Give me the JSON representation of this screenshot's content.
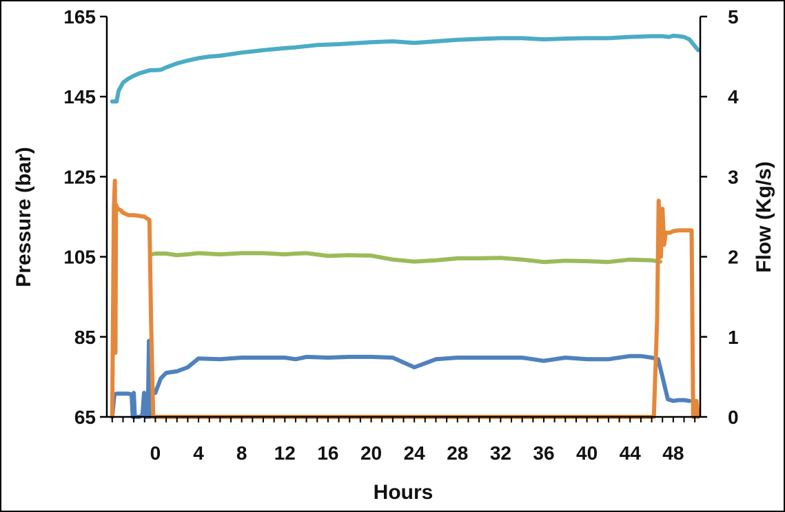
{
  "chart_data": {
    "type": "line",
    "title": "",
    "xlabel": "Hours",
    "ylabel": "Pressure (bar)",
    "y2label": "Flow (Kg/s)",
    "xlim": [
      -4.5,
      50.5
    ],
    "ylim": [
      65,
      165
    ],
    "y2lim": [
      0,
      5
    ],
    "x_ticks": [
      0,
      4,
      8,
      12,
      16,
      20,
      24,
      28,
      32,
      36,
      40,
      44,
      48
    ],
    "y_ticks": [
      65,
      85,
      105,
      125,
      145,
      165
    ],
    "y2_ticks": [
      0,
      1,
      2,
      3,
      4,
      5
    ],
    "grid": false,
    "legend": "none",
    "series": [
      {
        "color": "#4bacc6",
        "axis": "left",
        "x": [
          -4,
          -3.6,
          -3.4,
          -3,
          -2.5,
          -2,
          -1.5,
          -1,
          -0.5,
          0,
          0.5,
          1,
          2,
          3,
          4,
          5,
          6,
          8,
          10,
          12,
          13,
          15,
          17,
          20,
          22,
          24,
          26,
          28,
          30,
          32,
          34,
          36,
          38,
          40,
          42,
          44,
          46,
          47,
          47.6,
          48,
          48.5,
          49,
          49.5,
          50.3
        ],
        "y": [
          143.8,
          143.8,
          146.5,
          148.5,
          149.5,
          150.2,
          150.8,
          151.2,
          151.6,
          151.6,
          151.7,
          152.3,
          153.3,
          154,
          154.6,
          155,
          155.2,
          156,
          156.6,
          157.1,
          157.3,
          157.9,
          158.1,
          158.6,
          158.8,
          158.4,
          158.8,
          159.2,
          159.4,
          159.6,
          159.6,
          159.3,
          159.5,
          159.6,
          159.6,
          159.9,
          160.1,
          160.1,
          159.9,
          160.2,
          160.1,
          159.9,
          159.3,
          156.6
        ]
      },
      {
        "color": "#9bbb59",
        "axis": "left",
        "x": [
          -0.5,
          0,
          1,
          2,
          3,
          4,
          6,
          8,
          10,
          12,
          13,
          14,
          16,
          18,
          20,
          22,
          24,
          26,
          28,
          30,
          32,
          34,
          36,
          38,
          40,
          42,
          44,
          46,
          46.8
        ],
        "y": [
          105.5,
          105.8,
          105.8,
          105.4,
          105.6,
          105.9,
          105.6,
          105.9,
          105.9,
          105.6,
          105.8,
          105.9,
          105.2,
          105.4,
          105.3,
          104.3,
          103.8,
          104.1,
          104.6,
          104.6,
          104.7,
          104.3,
          103.7,
          104,
          103.9,
          103.7,
          104.3,
          104.1,
          103.8
        ]
      },
      {
        "color": "#4f81bd",
        "axis": "right",
        "x": [
          -4,
          -3.8,
          -3.6,
          -3.3,
          -3,
          -2.5,
          -2.2,
          -2.1,
          -2,
          -1.9,
          -1.5,
          -1.2,
          -1.05,
          -0.9,
          -0.7,
          -0.6,
          -0.5,
          -0.3,
          0,
          0.5,
          1,
          2,
          3,
          4,
          6,
          8,
          10,
          12,
          13,
          14,
          16,
          18,
          20,
          22,
          24,
          26,
          28,
          30,
          32,
          34,
          36,
          38,
          40,
          42,
          44,
          45,
          46,
          46.6,
          47,
          47.5,
          48,
          48.5,
          49,
          49.5
        ],
        "y": [
          0,
          0.28,
          0.29,
          0.29,
          0.29,
          0.29,
          0.28,
          0,
          0.3,
          0,
          0,
          0.02,
          0.3,
          0,
          0,
          0.95,
          0,
          0.3,
          0.3,
          0.48,
          0.55,
          0.57,
          0.62,
          0.73,
          0.72,
          0.74,
          0.74,
          0.74,
          0.72,
          0.75,
          0.74,
          0.75,
          0.75,
          0.74,
          0.62,
          0.72,
          0.74,
          0.74,
          0.74,
          0.74,
          0.7,
          0.74,
          0.72,
          0.72,
          0.76,
          0.76,
          0.74,
          0.72,
          0.5,
          0.22,
          0.2,
          0.21,
          0.21,
          0.2
        ]
      },
      {
        "color": "#e5883a",
        "axis": "right",
        "x": [
          -4,
          -3.85,
          -3.75,
          -3.7,
          -3.65,
          -3.5,
          -3.2,
          -3,
          -2.5,
          -2,
          -1.5,
          -1,
          -0.8,
          -0.55,
          -0.4,
          -0.2,
          0,
          4,
          8,
          12,
          16,
          20,
          24,
          28,
          32,
          36,
          40,
          44,
          46.2,
          46.5,
          46.65,
          46.75,
          46.85,
          47,
          47.15,
          47.3,
          47.5,
          47.7,
          48,
          48.5,
          49,
          49.5,
          49.7,
          49.85,
          50,
          50.15,
          50.3
        ],
        "y": [
          0,
          2.6,
          2.95,
          0.8,
          2.65,
          2.6,
          2.58,
          2.55,
          2.52,
          2.52,
          2.51,
          2.5,
          2.48,
          2.46,
          1.2,
          0,
          0,
          0,
          0,
          0,
          0,
          0,
          0,
          0,
          0,
          0,
          0,
          0,
          0,
          1.2,
          2.7,
          2.3,
          2.0,
          2.6,
          2.15,
          2.3,
          2.3,
          2.3,
          2.32,
          2.33,
          2.33,
          2.33,
          2.33,
          0,
          0,
          0.2,
          0
        ]
      }
    ]
  }
}
